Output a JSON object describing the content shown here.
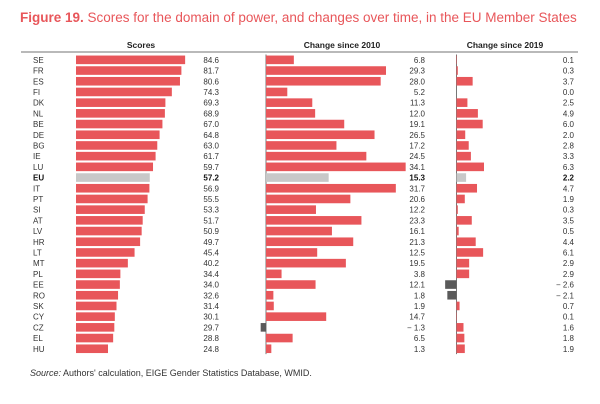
{
  "title": {
    "prefix": "Figure 19.",
    "text": " Scores for the domain of power, and changes over time, in the EU Member States"
  },
  "source": {
    "label": "Source:",
    "text": " Authors' calculation, EIGE Gender Statistics Database, WMID."
  },
  "colors": {
    "bar": "#e8565a",
    "eu": "#c8c8c8",
    "negative": "#5a5a5a"
  },
  "chart_data": {
    "type": "bar",
    "orientation": "horizontal",
    "highlight": "EU",
    "categories": [
      "SE",
      "FR",
      "ES",
      "FI",
      "DK",
      "NL",
      "BE",
      "DE",
      "BG",
      "IE",
      "LU",
      "EU",
      "IT",
      "PT",
      "SI",
      "AT",
      "LV",
      "HR",
      "LT",
      "MT",
      "PL",
      "EE",
      "RO",
      "SK",
      "CY",
      "CZ",
      "EL",
      "HU"
    ],
    "series": [
      {
        "name": "Scores",
        "values": [
          84.6,
          81.7,
          80.6,
          74.3,
          69.3,
          68.9,
          67.0,
          64.8,
          63.0,
          61.7,
          59.7,
          57.2,
          56.9,
          55.5,
          53.3,
          51.7,
          50.9,
          49.7,
          45.4,
          40.2,
          34.4,
          34.0,
          32.6,
          31.4,
          30.1,
          29.7,
          28.8,
          24.8
        ],
        "labels": [
          "84.6",
          "81.7",
          "80.6",
          "74.3",
          "69.3",
          "68.9",
          "67.0",
          "64.8",
          "63.0",
          "61.7",
          "59.7",
          "57.2",
          "56.9",
          "55.5",
          "53.3",
          "51.7",
          "50.9",
          "49.7",
          "45.4",
          "40.2",
          "34.4",
          "34.0",
          "32.6",
          "31.4",
          "30.1",
          "29.7",
          "28.8",
          "24.8"
        ]
      },
      {
        "name": "Change since 2010",
        "values": [
          6.8,
          29.3,
          28.0,
          5.2,
          11.3,
          12.0,
          19.1,
          26.5,
          17.2,
          24.5,
          34.1,
          15.3,
          31.7,
          20.6,
          12.2,
          23.3,
          16.1,
          21.3,
          12.5,
          19.5,
          3.8,
          12.1,
          1.8,
          1.9,
          14.7,
          -1.3,
          6.5,
          1.3
        ],
        "labels": [
          "6.8",
          "29.3",
          "28.0",
          "5.2",
          "11.3",
          "12.0",
          "19.1",
          "26.5",
          "17.2",
          "24.5",
          "34.1",
          "15.3",
          "31.7",
          "20.6",
          "12.2",
          "23.3",
          "16.1",
          "21.3",
          "12.5",
          "19.5",
          "3.8",
          "12.1",
          "1.8",
          "1.9",
          "14.7",
          "− 1.3",
          "6.5",
          "1.3"
        ]
      },
      {
        "name": "Change since 2019",
        "values": [
          0.1,
          0.3,
          3.7,
          0.0,
          2.5,
          4.9,
          6.0,
          2.0,
          2.8,
          3.3,
          6.3,
          2.2,
          4.7,
          1.9,
          0.3,
          3.5,
          0.5,
          4.4,
          6.1,
          2.9,
          2.9,
          -2.6,
          -2.1,
          0.7,
          0.1,
          1.6,
          1.8,
          1.9
        ],
        "labels": [
          "0.1",
          "0.3",
          "3.7",
          "0.0",
          "2.5",
          "4.9",
          "6.0",
          "2.0",
          "2.8",
          "3.3",
          "6.3",
          "2.2",
          "4.7",
          "1.9",
          "0.3",
          "3.5",
          "0.5",
          "4.4",
          "6.1",
          "2.9",
          "2.9",
          "− 2.6",
          "− 2.1",
          "0.7",
          "0.1",
          "1.6",
          "1.8",
          "1.9"
        ]
      }
    ],
    "xlim": [
      [
        0,
        100
      ],
      [
        -2,
        35
      ],
      [
        -3,
        7
      ]
    ]
  }
}
